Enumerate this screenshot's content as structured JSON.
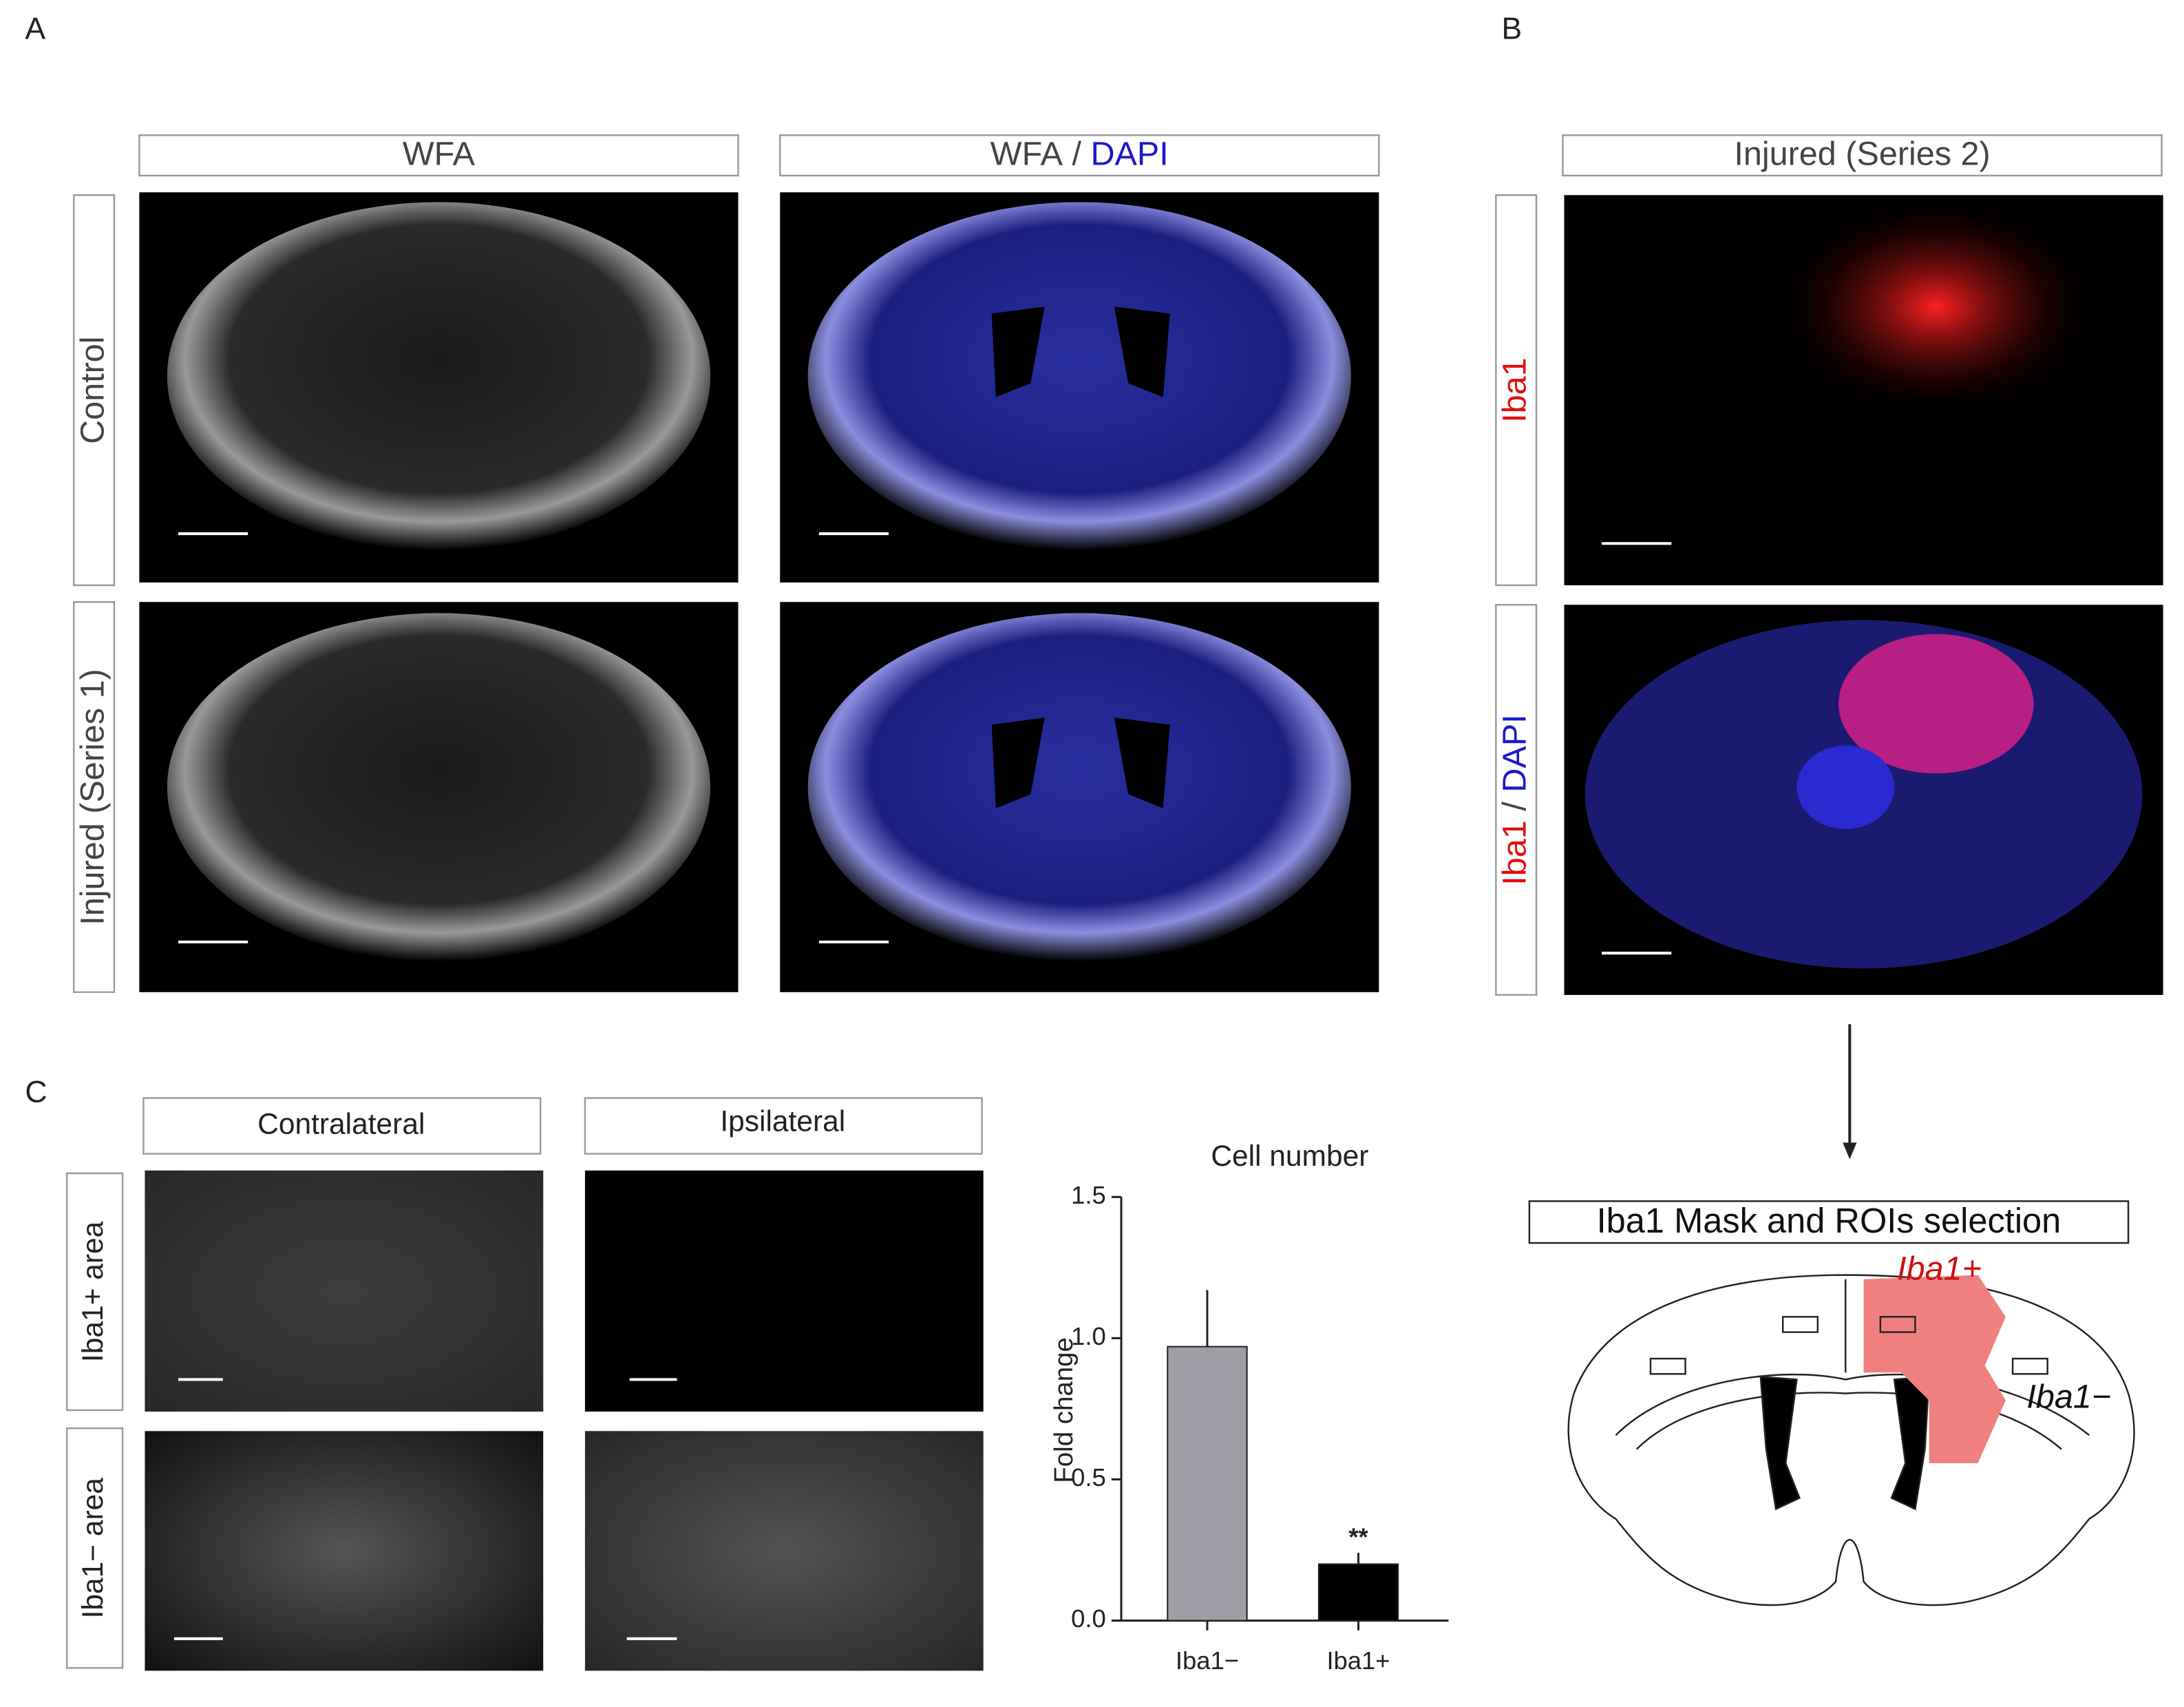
{
  "panel_a": {
    "label": "A",
    "col1": "WFA",
    "col2": {
      "a": "WFA",
      "sep": "/",
      "b": "DAPI"
    },
    "rows": [
      "Control",
      "Injured (Series 1)"
    ]
  },
  "panel_b": {
    "label": "B",
    "title": "Injured (Series 2)",
    "row1": "Iba1",
    "row2": {
      "a": "Iba1",
      "sep": "/",
      "b": "DAPI"
    },
    "mask_title": "Iba1 Mask and ROIs selection",
    "iba_pos": "Iba1+",
    "iba_neg": "Iba1−"
  },
  "panel_c": {
    "label": "C",
    "columns": [
      "Contralateral",
      "Ipsilateral"
    ],
    "rows": [
      "Iba1+ area",
      "Iba1− area"
    ]
  },
  "chart_data": {
    "type": "bar",
    "title": "Cell number",
    "y_label": "Fold change",
    "categories": [
      "Iba1−",
      "Iba1+"
    ],
    "values": [
      0.97,
      0.2
    ],
    "errors": [
      0.2,
      0.04
    ],
    "colors": [
      "#9e9ea6",
      "#000000"
    ],
    "significance": [
      null,
      "**"
    ],
    "ylim": [
      0,
      1.5
    ],
    "yticks": [
      {
        "value": 0,
        "label": "0.0"
      },
      0.5,
      {
        "value": 1,
        "label": "1.0"
      },
      1.5
    ]
  }
}
